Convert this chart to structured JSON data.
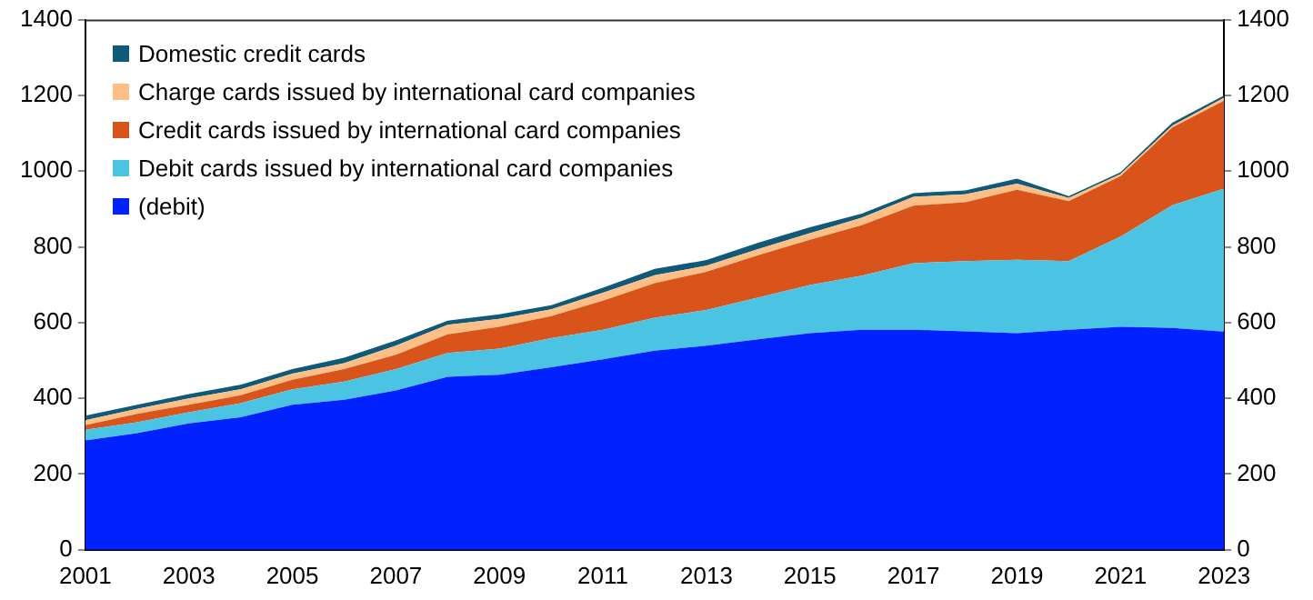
{
  "chart_data": {
    "type": "area",
    "stacked": true,
    "x": [
      2001,
      2002,
      2003,
      2004,
      2005,
      2006,
      2007,
      2008,
      2009,
      2010,
      2011,
      2012,
      2013,
      2014,
      2015,
      2016,
      2017,
      2018,
      2019,
      2020,
      2021,
      2022,
      2023
    ],
    "series": [
      {
        "name": "(debit)",
        "color": "#0022ff",
        "values": [
          289,
          308,
          334,
          350,
          383,
          396,
          421,
          457,
          462,
          482,
          503,
          526,
          539,
          556,
          572,
          581,
          581,
          577,
          572,
          581,
          589,
          586,
          576
        ]
      },
      {
        "name": "Debit cards issued by international card companies",
        "color": "#4bc3e3",
        "values": [
          28,
          29,
          29,
          37,
          41,
          48,
          56,
          63,
          69,
          77,
          78,
          87,
          94,
          110,
          127,
          143,
          176,
          185,
          194,
          181,
          238,
          324,
          378
        ]
      },
      {
        "name": "Credit cards issued by international card companies",
        "color": "#d9541a",
        "values": [
          12,
          22,
          20,
          21,
          25,
          33,
          38,
          49,
          58,
          58,
          77,
          91,
          101,
          112,
          120,
          133,
          152,
          156,
          185,
          159,
          160,
          205,
          232
        ]
      },
      {
        "name": "Charge cards issued by international card companies",
        "color": "#fdbf85",
        "values": [
          13,
          13,
          17,
          16,
          16,
          16,
          24,
          25,
          21,
          18,
          21,
          21,
          16,
          16,
          17,
          20,
          23,
          21,
          16,
          8,
          5,
          5,
          8
        ]
      },
      {
        "name": "Domestic credit cards",
        "color": "#0f5a78",
        "values": [
          12,
          11,
          11,
          12,
          12,
          14,
          14,
          11,
          12,
          11,
          13,
          17,
          15,
          17,
          16,
          11,
          10,
          10,
          13,
          5,
          5,
          8,
          6
        ]
      }
    ],
    "xlim": [
      2001,
      2023
    ],
    "xticks": [
      2001,
      2003,
      2005,
      2007,
      2009,
      2011,
      2013,
      2015,
      2017,
      2019,
      2021,
      2023
    ],
    "ylim": [
      0,
      1400
    ],
    "yticks": [
      0,
      200,
      400,
      600,
      800,
      1000,
      1200,
      1400
    ],
    "y2lim": [
      0,
      1400
    ],
    "y2ticks": [
      0,
      200,
      400,
      600,
      800,
      1000,
      1200,
      1400
    ],
    "grid": false,
    "legend": "top left"
  }
}
